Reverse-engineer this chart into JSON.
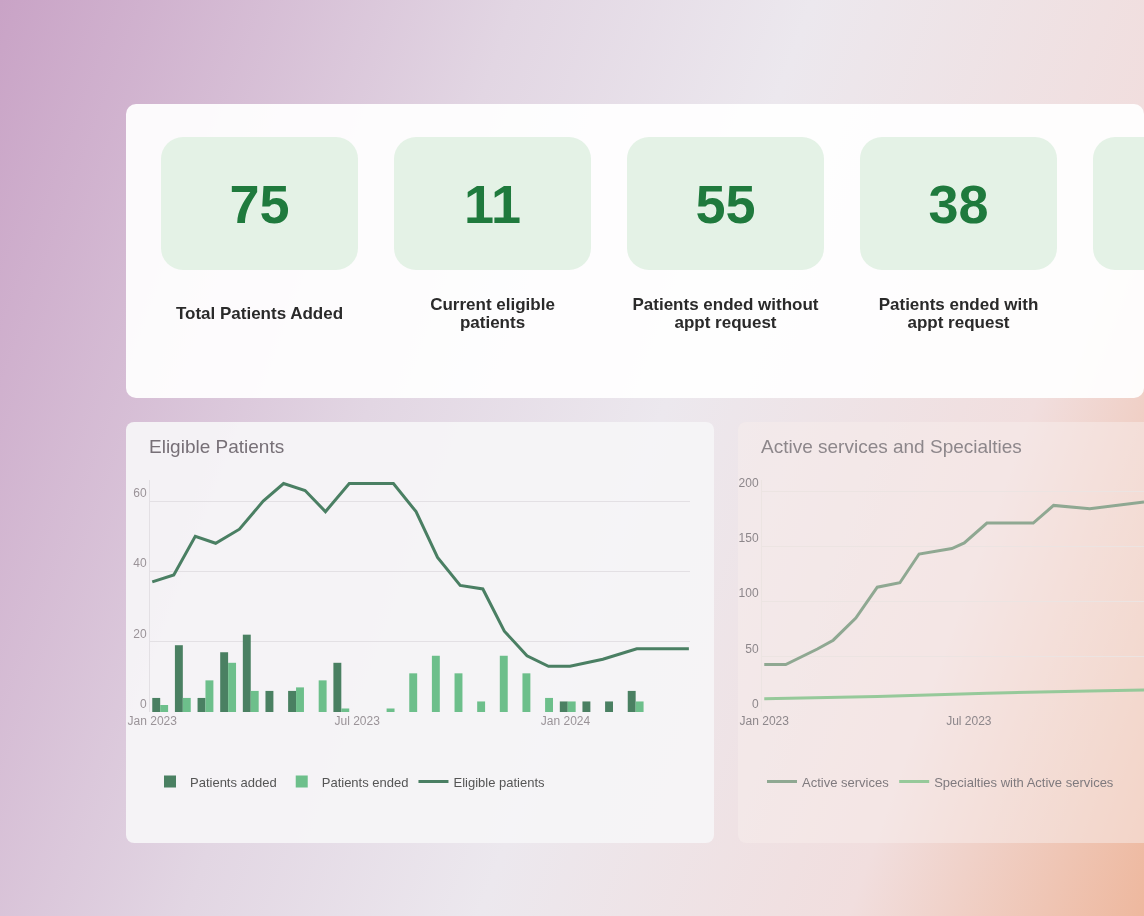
{
  "chart_data": [
    {
      "type": "other",
      "categories": [
        "Total Patients Added",
        "Current eligible patients",
        "Patients ended without appt request",
        "Patients ended with appt request"
      ],
      "values": [
        75,
        11,
        55,
        38
      ],
      "data_labels": true,
      "color": "#e4f2e6"
    },
    {
      "type": "bar",
      "title": "Eligible Patients",
      "xlim": [
        "2022-12-30",
        "2024-04-20"
      ],
      "xticks": [
        {
          "value": "2023-01-01",
          "label": "Jan 2023"
        },
        {
          "value": "2023-07-01",
          "label": "Jul 2023"
        },
        {
          "value": "2024-01-01",
          "label": "Jan 2024"
        }
      ],
      "ylim": [
        0,
        66
      ],
      "yticks": [
        0,
        20,
        40,
        60
      ],
      "grid": "y",
      "legend": "bottom",
      "series": [
        {
          "name": "Patients added",
          "color": "#4a8062",
          "x": [
            "2023-01-08",
            "2023-01-28",
            "2023-02-17",
            "2023-03-09",
            "2023-03-29",
            "2023-04-18",
            "2023-05-08",
            "2023-05-28",
            "2023-06-17",
            "2023-07-07",
            "2023-07-27",
            "2023-08-16",
            "2023-09-05",
            "2023-09-25",
            "2023-10-15",
            "2023-11-04",
            "2023-11-24",
            "2023-12-14",
            "2024-01-03",
            "2024-01-23",
            "2024-02-12",
            "2024-03-03"
          ],
          "values": [
            4,
            19,
            4,
            17,
            22,
            6,
            6,
            null,
            14,
            null,
            null,
            null,
            null,
            null,
            null,
            null,
            null,
            null,
            3,
            3,
            3,
            6
          ]
        },
        {
          "name": "Patients ended",
          "color": "#6dbf8b",
          "x": [
            "2023-01-08",
            "2023-01-28",
            "2023-02-17",
            "2023-03-09",
            "2023-03-29",
            "2023-04-18",
            "2023-05-08",
            "2023-05-28",
            "2023-06-17",
            "2023-07-07",
            "2023-07-27",
            "2023-08-16",
            "2023-09-05",
            "2023-09-25",
            "2023-10-15",
            "2023-11-04",
            "2023-11-24",
            "2023-12-14",
            "2024-01-03",
            "2024-01-23",
            "2024-02-12",
            "2024-03-03"
          ],
          "values": [
            2,
            4,
            9,
            14,
            6,
            null,
            7,
            9,
            1,
            null,
            1,
            11,
            16,
            11,
            3,
            16,
            11,
            4,
            3,
            null,
            null,
            3
          ]
        },
        {
          "name": "Eligible patients",
          "type": "line",
          "color": "#4a7f63",
          "x": [
            "2023-01-01",
            "2023-01-20",
            "2023-02-08",
            "2023-02-26",
            "2023-03-19",
            "2023-04-09",
            "2023-04-27",
            "2023-05-16",
            "2023-06-03",
            "2023-06-24",
            "2023-07-13",
            "2023-08-02",
            "2023-08-22",
            "2023-09-10",
            "2023-09-30",
            "2023-10-20",
            "2023-11-08",
            "2023-11-28",
            "2023-12-17",
            "2024-01-05",
            "2024-02-03",
            "2024-03-04",
            "2024-04-19"
          ],
          "values": [
            37,
            39,
            50,
            48,
            52,
            60,
            65,
            63,
            57,
            65,
            65,
            65,
            57,
            44,
            36,
            35,
            23,
            16,
            13,
            13,
            15,
            18,
            18
          ]
        }
      ]
    },
    {
      "type": "line",
      "title": "Active services and Specialties",
      "xlim": [
        "2022-12-30",
        "2023-12-03"
      ],
      "xticks": [
        {
          "value": "2023-01-01",
          "label": "Jan 2023"
        },
        {
          "value": "2023-07-01",
          "label": "Jul 2023"
        }
      ],
      "ylim": [
        0,
        210
      ],
      "yticks": [
        0,
        50,
        100,
        150,
        200
      ],
      "grid": "y",
      "legend": "bottom",
      "series": [
        {
          "name": "Active services",
          "color": "#8fa892",
          "x": [
            "2023-01-01",
            "2023-01-20",
            "2023-02-17",
            "2023-03-03",
            "2023-03-23",
            "2023-04-11",
            "2023-05-01",
            "2023-05-18",
            "2023-06-16",
            "2023-06-27",
            "2023-07-17",
            "2023-08-27",
            "2023-09-14",
            "2023-10-16",
            "2023-12-03"
          ],
          "values": [
            43,
            43,
            57,
            65,
            85,
            113,
            117,
            143,
            148,
            153,
            171,
            171,
            187,
            184,
            190
          ]
        },
        {
          "name": "Specialties with Active services",
          "color": "#96c99a",
          "x": [
            "2023-01-01",
            "2023-04-11",
            "2023-07-17",
            "2023-10-16",
            "2023-12-03"
          ],
          "values": [
            12,
            14,
            17,
            19,
            20
          ]
        }
      ]
    }
  ]
}
